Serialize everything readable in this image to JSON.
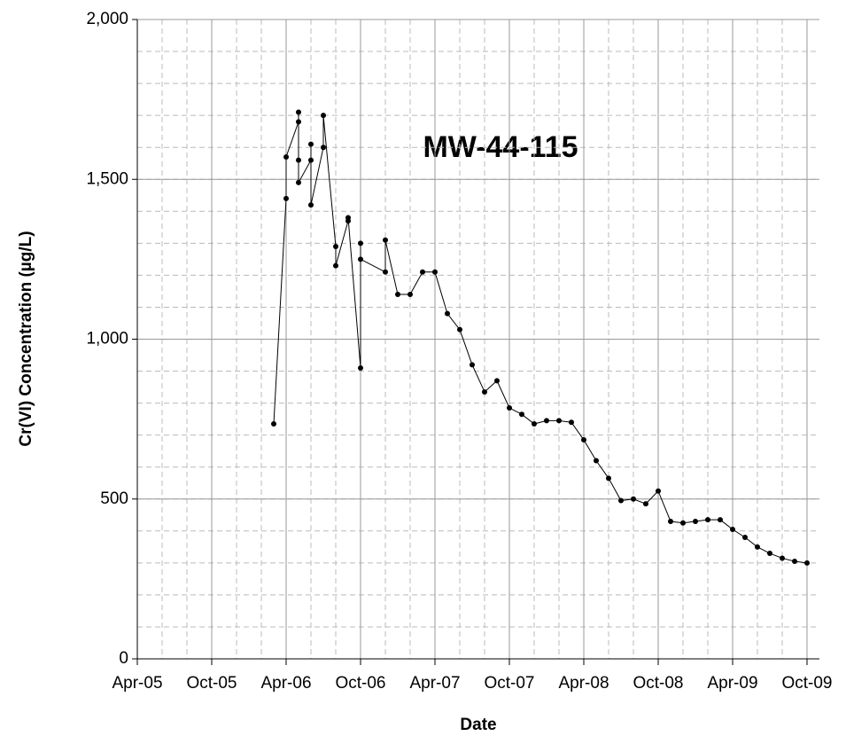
{
  "chart_data": {
    "type": "line",
    "annotation": "MW-44-115",
    "xlabel": "Date",
    "ylabel": "Cr(VI) Concentration (µg/L)",
    "x": [
      "2006-03",
      "2006-04",
      "2006-04",
      "2006-05",
      "2006-05",
      "2006-05",
      "2006-05",
      "2006-06",
      "2006-06",
      "2006-06",
      "2006-07",
      "2006-07",
      "2006-08",
      "2006-08",
      "2006-09",
      "2006-09",
      "2006-10",
      "2006-10",
      "2006-10",
      "2006-12",
      "2006-12",
      "2007-01",
      "2007-02",
      "2007-03",
      "2007-04",
      "2007-05",
      "2007-06",
      "2007-07",
      "2007-08",
      "2007-09",
      "2007-10",
      "2007-11",
      "2007-12",
      "2008-01",
      "2008-02",
      "2008-03",
      "2008-04",
      "2008-05",
      "2008-06",
      "2008-07",
      "2008-08",
      "2008-09",
      "2008-10",
      "2008-11",
      "2008-12",
      "2009-01",
      "2009-02",
      "2009-03",
      "2009-04",
      "2009-05",
      "2009-06",
      "2009-07",
      "2009-08",
      "2009-09",
      "2009-10"
    ],
    "series": [
      {
        "name": "MW-44-115",
        "color": "#000000",
        "values": [
          735,
          1440,
          1570,
          1680,
          1560,
          1710,
          1490,
          1560,
          1610,
          1420,
          1600,
          1700,
          1290,
          1230,
          1370,
          1380,
          910,
          1300,
          1250,
          1210,
          1310,
          1140,
          1140,
          1210,
          1210,
          1080,
          1030,
          920,
          835,
          870,
          785,
          765,
          735,
          745,
          745,
          740,
          685,
          620,
          565,
          495,
          500,
          485,
          525,
          430,
          425,
          430,
          435,
          435,
          405,
          380,
          350,
          330,
          315,
          305,
          300
        ]
      }
    ],
    "xlim": [
      "2005-04",
      "2009-11"
    ],
    "xticks": [
      {
        "value": "2005-04",
        "label": "Apr-05"
      },
      {
        "value": "2005-10",
        "label": "Oct-05"
      },
      {
        "value": "2006-04",
        "label": "Apr-06"
      },
      {
        "value": "2006-10",
        "label": "Oct-06"
      },
      {
        "value": "2007-04",
        "label": "Apr-07"
      },
      {
        "value": "2007-10",
        "label": "Oct-07"
      },
      {
        "value": "2008-04",
        "label": "Apr-08"
      },
      {
        "value": "2008-10",
        "label": "Oct-08"
      },
      {
        "value": "2009-04",
        "label": "Apr-09"
      },
      {
        "value": "2009-10",
        "label": "Oct-09"
      }
    ],
    "ylim": [
      0,
      2000
    ],
    "yticks": [
      0,
      500,
      {
        "value": 1000,
        "label": "1,000"
      },
      {
        "value": 1500,
        "label": "1,500"
      },
      {
        "value": 2000,
        "label": "2,000"
      }
    ],
    "grid": true,
    "minor_grid": true
  }
}
